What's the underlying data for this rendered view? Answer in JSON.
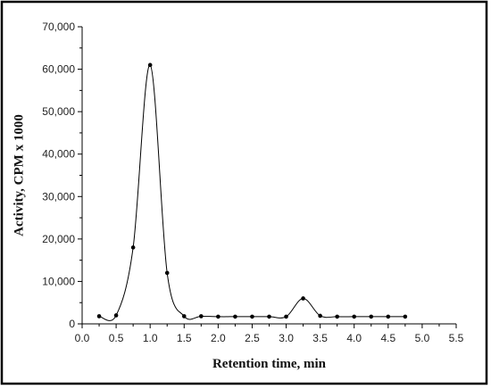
{
  "chart_data": {
    "type": "line",
    "title": "",
    "xlabel": "Retention time, min",
    "ylabel": "Activity, CPM x 1000",
    "xlim": [
      0,
      5.5
    ],
    "ylim": [
      0,
      70000
    ],
    "x_ticks": [
      "0.0",
      "0.5",
      "1.0",
      "1.5",
      "2.0",
      "2.5",
      "3.0",
      "3.5",
      "4.0",
      "4.5",
      "5.0",
      "5.5"
    ],
    "y_ticks": [
      "0",
      "10,000",
      "20,000",
      "30,000",
      "40,000",
      "50,000",
      "60,000",
      "70,000"
    ],
    "grid": false,
    "legend": "none",
    "colors": {
      "line": "#000000",
      "marker": "#000000",
      "frame": "#000000",
      "axis": "#000000"
    },
    "series": [
      {
        "x": [
          0.25,
          0.5,
          0.75,
          1.0,
          1.25,
          1.5,
          1.75,
          2.0,
          2.25,
          2.5,
          2.75,
          3.0,
          3.25,
          3.5,
          3.75,
          4.0,
          4.25,
          4.5,
          4.75
        ],
        "y": [
          1800,
          2000,
          18000,
          61000,
          12000,
          1800,
          1800,
          1700,
          1700,
          1700,
          1700,
          1700,
          6000,
          1900,
          1700,
          1700,
          1700,
          1700,
          1700
        ]
      }
    ]
  }
}
